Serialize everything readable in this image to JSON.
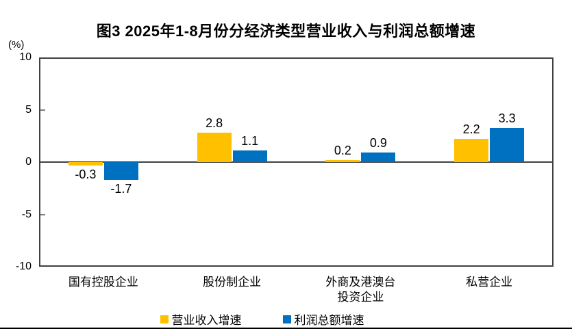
{
  "chart_data": {
    "type": "bar",
    "title": "图3 2025年1-8月份分经济类型营业收入与利润总额增速",
    "unit_label": "(%)",
    "categories": [
      "国有控股企业",
      "股份制企业",
      "外商及港澳台\n投资企业",
      "私营企业"
    ],
    "series": [
      {
        "name": "营业收入增速",
        "color": "#FFC000",
        "values": [
          -0.3,
          2.8,
          0.2,
          2.2
        ]
      },
      {
        "name": "利润总额增速",
        "color": "#0070C0",
        "values": [
          -1.7,
          1.1,
          0.9,
          3.3
        ]
      }
    ],
    "ylim": [
      -10,
      10
    ],
    "yticks": [
      10,
      5,
      0,
      -5,
      -10
    ],
    "ylabel": "",
    "xlabel": "",
    "grid": false,
    "legend_position": "bottom",
    "data_labels": true
  }
}
